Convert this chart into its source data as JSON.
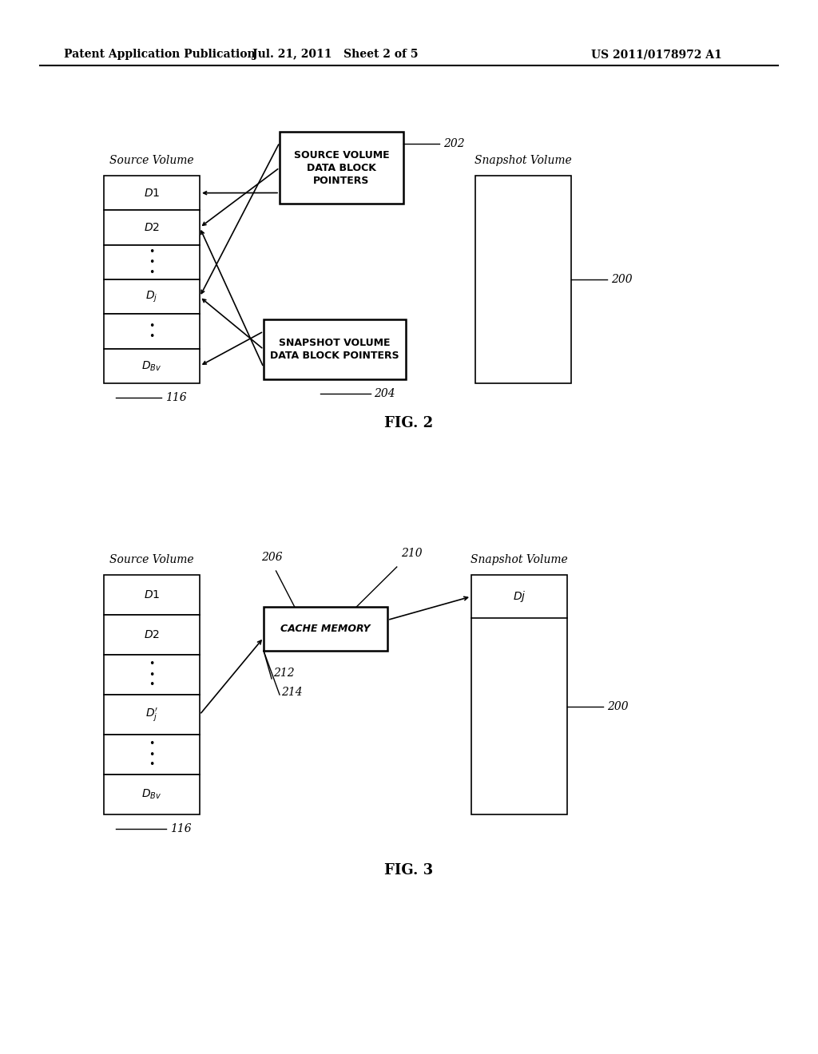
{
  "header_left": "Patent Application Publication",
  "header_mid": "Jul. 21, 2011   Sheet 2 of 5",
  "header_right": "US 2011/0178972 A1",
  "fig2_title": "FIG. 2",
  "fig3_title": "FIG. 3",
  "bg_color": "#ffffff",
  "line_color": "#000000"
}
